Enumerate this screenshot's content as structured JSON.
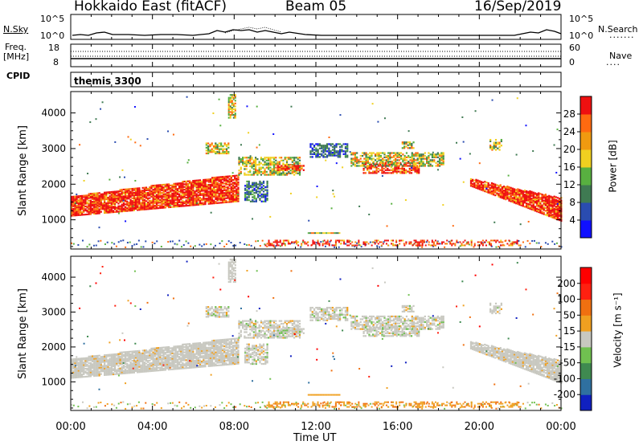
{
  "header": {
    "title": "Hokkaido East (fitACF)",
    "beam": "Beam 05",
    "date": "16/Sep/2019"
  },
  "top_panel": {
    "left_label_1": "N.Sky",
    "left_label_2": "Freq.",
    "left_label_3": "[MHz]",
    "left_label_4": "CPID",
    "right_label_1": "N.Search",
    "right_label_2": "Nave",
    "noise_ticks": [
      "10^5",
      "10^0"
    ],
    "freq_ticks": [
      "18",
      "8"
    ],
    "nave_ticks": [
      "60",
      "0"
    ],
    "cpid_text": "themis 3300"
  },
  "chart_data": [
    {
      "type": "heatmap",
      "name": "power",
      "xlabel": "",
      "ylabel": "Slant Range [km]",
      "xlim": [
        0,
        24
      ],
      "ylim": [
        180,
        4600
      ],
      "yticks": [
        "1000",
        "2000",
        "3000",
        "4000"
      ],
      "colorbar": {
        "label": "Power [dB]",
        "ticks": [
          "4",
          "8",
          "12",
          "16",
          "20",
          "24",
          "28"
        ],
        "colors": [
          "#1010ff",
          "#2a4cb0",
          "#3f7a52",
          "#58b040",
          "#f0d020",
          "#f09a10",
          "#ff6a10",
          "#ee1010"
        ],
        "range": [
          0,
          32
        ]
      },
      "echo_regions": [
        {
          "t": [
            0,
            8
          ],
          "range_km": [
            900,
            2100
          ],
          "level": "red"
        },
        {
          "t": [
            8,
            11.5
          ],
          "range_km": [
            2250,
            2800
          ],
          "level": "mixed"
        },
        {
          "t": [
            14.3,
            16.8
          ],
          "range_km": [
            2300,
            2500
          ],
          "level": "red"
        },
        {
          "t": [
            19.5,
            24
          ],
          "range_km": [
            700,
            2100
          ],
          "level": "red"
        }
      ]
    },
    {
      "type": "heatmap",
      "name": "velocity",
      "xlabel": "Time UT",
      "ylabel": "Slant Range [km]",
      "xlim": [
        0,
        24
      ],
      "ylim": [
        180,
        4600
      ],
      "xticks": [
        "00:00",
        "04:00",
        "08:00",
        "12:00",
        "16:00",
        "20:00",
        "00:00"
      ],
      "yticks": [
        "1000",
        "2000",
        "3000",
        "4000"
      ],
      "colorbar": {
        "label": "Velocity [m s⁻¹]",
        "ticks": [
          "200",
          "100",
          "50",
          "15",
          "-15",
          "-50",
          "-100",
          "-200"
        ],
        "colors": [
          "#1020c0",
          "#2f70a0",
          "#3f8a50",
          "#70c050",
          "#c8c8c0",
          "#f0a020",
          "#f07010",
          "#ff2010",
          "#ff0000"
        ],
        "range": [
          -250,
          250
        ]
      },
      "dominant_value": "ground scatter (grey, ~0 m/s)"
    }
  ]
}
